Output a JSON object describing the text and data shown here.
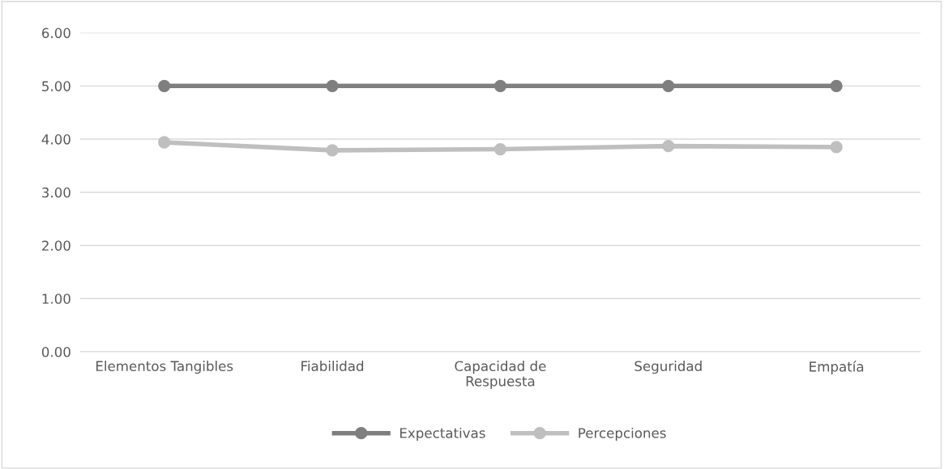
{
  "chart_data": {
    "type": "line",
    "categories": [
      "Elementos Tangibles",
      "Fiabilidad",
      "Capacidad de\nRespuesta",
      "Seguridad",
      "Empatía"
    ],
    "series": [
      {
        "name": "Expectativas",
        "color": "#7f7f7f",
        "values": [
          5.0,
          5.0,
          5.0,
          5.0,
          5.0
        ]
      },
      {
        "name": "Percepciones",
        "color": "#bfbfbf",
        "values": [
          3.94,
          3.79,
          3.81,
          3.87,
          3.85
        ]
      }
    ],
    "ylim": [
      0,
      6
    ],
    "yticks": [
      {
        "value": 0,
        "label": "0.00"
      },
      {
        "value": 1,
        "label": "1.00"
      },
      {
        "value": 2,
        "label": "2.00"
      },
      {
        "value": 3,
        "label": "3.00"
      },
      {
        "value": 4,
        "label": "4.00"
      },
      {
        "value": 5,
        "label": "5.00"
      },
      {
        "value": 6,
        "label": "6.00"
      }
    ],
    "grid": "y",
    "legend": "bottom",
    "marker": "circle",
    "line_style": "solid"
  }
}
